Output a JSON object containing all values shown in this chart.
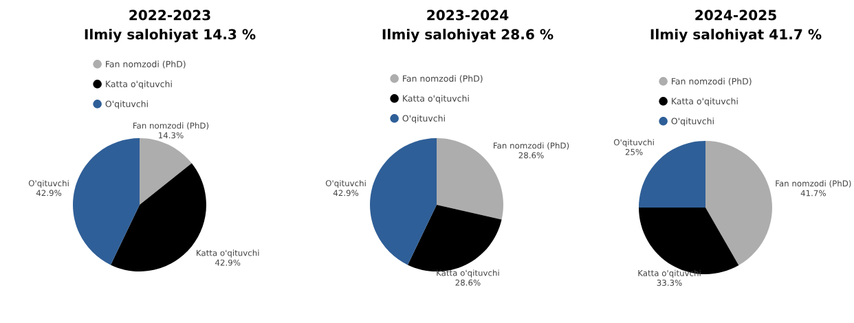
{
  "chart_data": [
    {
      "type": "pie",
      "title": "2022-2023\nIlmiy salohiyat 14.3 %",
      "categories": [
        "Fan nomzodi (PhD)",
        "Katta o'qituvchi",
        "O'qituvchi"
      ],
      "values": [
        14.3,
        42.9,
        42.9
      ],
      "value_labels": [
        "14.3%",
        "42.9%",
        "42.9%"
      ],
      "colors": [
        "#adadad",
        "#000000",
        "#2f5f98"
      ],
      "legend": "top"
    },
    {
      "type": "pie",
      "title": "2023-2024\nIlmiy salohiyat 28.6 %",
      "categories": [
        "Fan nomzodi (PhD)",
        "Katta o'qituvchi",
        "O'qituvchi"
      ],
      "values": [
        28.6,
        28.6,
        42.9
      ],
      "value_labels": [
        "28.6%",
        "28.6%",
        "42.9%"
      ],
      "colors": [
        "#adadad",
        "#000000",
        "#2f5f98"
      ],
      "legend": "top"
    },
    {
      "type": "pie",
      "title": "2024-2025\nIlmiy salohiyat 41.7 %",
      "categories": [
        "Fan nomzodi (PhD)",
        "Katta o'qituvchi",
        "O'qituvchi"
      ],
      "values": [
        41.7,
        33.3,
        25
      ],
      "value_labels": [
        "41.7%",
        "33.3%",
        "25%"
      ],
      "colors": [
        "#adadad",
        "#000000",
        "#2f5f98"
      ],
      "legend": "top"
    }
  ]
}
